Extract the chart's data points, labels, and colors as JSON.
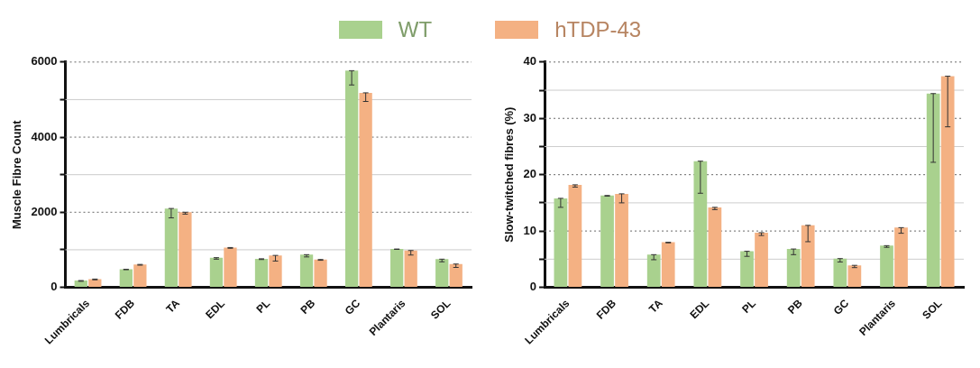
{
  "chart_data": [
    {
      "type": "bar",
      "ylabel": "Muscle Fibre Count",
      "categories": [
        "Lumbricals",
        "FDB",
        "TA",
        "EDL",
        "PL",
        "PB",
        "GC",
        "Plantaris",
        "SOL"
      ],
      "ylim": [
        0,
        6000
      ],
      "yticks": [
        0,
        {
          "value": 1000,
          "label": null
        },
        2000,
        {
          "value": 3000,
          "label": null
        },
        4000,
        {
          "value": 5000,
          "label": null
        },
        6000
      ],
      "grid": "y",
      "legend": "top",
      "series": [
        {
          "name": "WT",
          "color": "#a9d18e",
          "values": [
            180,
            480,
            2100,
            790,
            760,
            870,
            5770,
            1020,
            750
          ],
          "errors": [
            [
              160,
              180
            ],
            [
              470,
              480
            ],
            [
              1850,
              2100
            ],
            [
              750,
              790
            ],
            [
              740,
              760
            ],
            [
              810,
              870
            ],
            [
              5390,
              5770
            ],
            [
              1010,
              1020
            ],
            [
              680,
              750
            ]
          ]
        },
        {
          "name": "hTDP-43",
          "color": "#f4b183",
          "values": [
            220,
            610,
            2000,
            1060,
            850,
            740,
            5180,
            980,
            620
          ],
          "errors": [
            [
              200,
              220
            ],
            [
              590,
              610
            ],
            [
              1950,
              2000
            ],
            [
              1040,
              1060
            ],
            [
              700,
              850
            ],
            [
              720,
              740
            ],
            [
              4950,
              5180
            ],
            [
              860,
              980
            ],
            [
              530,
              620
            ]
          ]
        }
      ]
    },
    {
      "type": "bar",
      "ylabel": "Slow-twitched fibres (%)",
      "categories": [
        "Lumbricals",
        "FDB",
        "TA",
        "EDL",
        "PL",
        "PB",
        "GC",
        "Plantaris",
        "SOL"
      ],
      "ylim": [
        0,
        40
      ],
      "yticks": [
        0,
        {
          "value": 5,
          "label": null
        },
        10,
        {
          "value": 15,
          "label": null
        },
        20,
        {
          "value": 25,
          "label": null
        },
        30,
        {
          "value": 35,
          "label": null
        },
        40
      ],
      "grid": "y",
      "series": [
        {
          "color": "#a9d18e",
          "values": [
            15.8,
            16.3,
            5.8,
            22.4,
            6.4,
            6.8,
            5.1,
            7.4,
            34.4
          ],
          "errors": [
            [
              14.2,
              15.8
            ],
            [
              16.2,
              16.3
            ],
            [
              4.9,
              5.8
            ],
            [
              16.7,
              22.4
            ],
            [
              5.5,
              6.4
            ],
            [
              5.8,
              6.8
            ],
            [
              4.5,
              5.1
            ],
            [
              7.1,
              7.4
            ],
            [
              22.2,
              34.4
            ]
          ]
        },
        {
          "color": "#f4b183",
          "values": [
            18.2,
            16.6,
            8.0,
            14.2,
            9.7,
            11.0,
            3.9,
            10.6,
            37.5
          ],
          "errors": [
            [
              17.8,
              18.2
            ],
            [
              15.0,
              16.6
            ],
            [
              7.9,
              8.0
            ],
            [
              13.8,
              14.2
            ],
            [
              9.2,
              9.7
            ],
            [
              8.1,
              11.0
            ],
            [
              3.5,
              3.9
            ],
            [
              9.6,
              10.6
            ],
            [
              28.5,
              37.5
            ]
          ]
        }
      ]
    }
  ]
}
